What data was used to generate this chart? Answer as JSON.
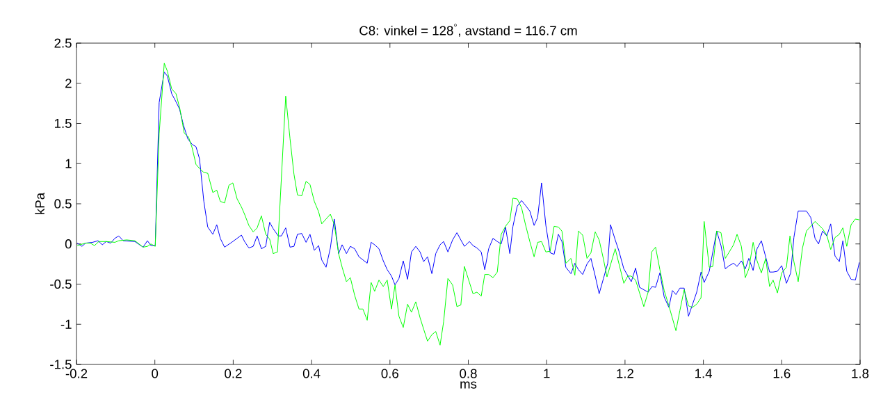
{
  "chart_data": {
    "type": "line",
    "title": "C8: vinkel = 128$^{°}$, avstand = 116.7 cm",
    "xlabel": "ms",
    "ylabel": "kPa",
    "xlim": [
      -0.2,
      1.8
    ],
    "ylim": [
      -1.5,
      2.5
    ],
    "xticks": [
      -0.2,
      0,
      0.2,
      0.4,
      0.6,
      0.8,
      1,
      1.2,
      1.4,
      1.6,
      1.8
    ],
    "yticks": [
      -1.5,
      -1,
      -0.5,
      0,
      0.5,
      1,
      1.5,
      2,
      2.5
    ],
    "grid": false,
    "line_style": "solid",
    "series": [
      {
        "color": "#0000ff",
        "x": [
          -0.198,
          -0.186,
          -0.177,
          -0.159,
          -0.145,
          -0.134,
          -0.124,
          -0.113,
          -0.102,
          -0.092,
          -0.081,
          -0.051,
          -0.03,
          -0.019,
          -0.01,
          0.001,
          0.011,
          0.024,
          0.032,
          0.043,
          0.054,
          0.063,
          0.073,
          0.084,
          0.095,
          0.105,
          0.114,
          0.125,
          0.135,
          0.148,
          0.158,
          0.167,
          0.178,
          0.199,
          0.221,
          0.229,
          0.24,
          0.251,
          0.261,
          0.272,
          0.283,
          0.293,
          0.302,
          0.315,
          0.323,
          0.334,
          0.345,
          0.355,
          0.364,
          0.375,
          0.386,
          0.396,
          0.407,
          0.418,
          0.426,
          0.437,
          0.448,
          0.458,
          0.469,
          0.478,
          0.489,
          0.499,
          0.51,
          0.521,
          0.542,
          0.552,
          0.561,
          0.572,
          0.583,
          0.593,
          0.604,
          0.613,
          0.623,
          0.634,
          0.645,
          0.655,
          0.666,
          0.677,
          0.686,
          0.696,
          0.707,
          0.717,
          0.728,
          0.737,
          0.748,
          0.76,
          0.771,
          0.781,
          0.79,
          0.803,
          0.812,
          0.822,
          0.833,
          0.842,
          0.852,
          0.863,
          0.874,
          0.884,
          0.895,
          0.906,
          0.914,
          0.925,
          0.936,
          0.946,
          0.957,
          0.968,
          0.977,
          0.987,
          0.998,
          1.009,
          1.019,
          1.03,
          1.039,
          1.049,
          1.062,
          1.072,
          1.081,
          1.092,
          1.103,
          1.113,
          1.124,
          1.134,
          1.145,
          1.156,
          1.163,
          1.175,
          1.184,
          1.197,
          1.216,
          1.227,
          1.237,
          1.259,
          1.269,
          1.278,
          1.289,
          1.3,
          1.312,
          1.321,
          1.33,
          1.34,
          1.351,
          1.362,
          1.383,
          1.394,
          1.402,
          1.415,
          1.434,
          1.445,
          1.456,
          1.466,
          1.477,
          1.486,
          1.497,
          1.507,
          1.516,
          1.527,
          1.537,
          1.548,
          1.559,
          1.569,
          1.578,
          1.589,
          1.6,
          1.612,
          1.623,
          1.631,
          1.642,
          1.653,
          1.663,
          1.674,
          1.685,
          1.694,
          1.704,
          1.715,
          1.725,
          1.736,
          1.747,
          1.756,
          1.766,
          1.777,
          1.788,
          1.798
        ],
        "values": [
          0.01,
          -0.03,
          0.01,
          0.02,
          0.04,
          -0.01,
          0.03,
          0.01,
          0.07,
          0.1,
          0.04,
          0.03,
          -0.04,
          0.04,
          -0.02,
          -0.02,
          1.76,
          2.14,
          2.09,
          1.87,
          1.77,
          1.68,
          1.48,
          1.31,
          1.24,
          1.21,
          1.06,
          0.53,
          0.21,
          0.12,
          0.24,
          0.07,
          -0.04,
          0.03,
          0.11,
          0.03,
          -0.05,
          -0.03,
          0.1,
          -0.06,
          -0.03,
          0.27,
          0.19,
          0.1,
          0.1,
          0.2,
          -0.04,
          -0.03,
          0.12,
          0.13,
          0.02,
          0.12,
          -0.08,
          -0.02,
          -0.2,
          -0.29,
          -0.05,
          0.31,
          -0.12,
          -0.01,
          -0.12,
          -0.03,
          -0.06,
          -0.16,
          -0.24,
          0.02,
          -0.01,
          -0.06,
          -0.21,
          -0.32,
          -0.4,
          -0.51,
          -0.43,
          -0.21,
          -0.44,
          -0.1,
          -0.03,
          -0.1,
          -0.22,
          -0.16,
          -0.37,
          -0.12,
          -0.01,
          0.03,
          -0.1,
          0.05,
          0.14,
          0.05,
          -0.03,
          0.03,
          -0.02,
          -0.05,
          -0.1,
          -0.32,
          -0.06,
          0.07,
          0.03,
          0.0,
          0.21,
          -0.12,
          0.22,
          0.47,
          0.54,
          0.48,
          0.41,
          0.23,
          0.33,
          0.76,
          0.23,
          -0.11,
          -0.13,
          0.12,
          0.03,
          -0.29,
          -0.37,
          -0.24,
          -0.32,
          -0.38,
          -0.25,
          -0.18,
          -0.4,
          -0.62,
          -0.43,
          -0.24,
          0.24,
          0.05,
          -0.08,
          -0.31,
          -0.47,
          -0.3,
          -0.54,
          -0.6,
          -0.53,
          -0.54,
          -0.36,
          -0.66,
          -0.79,
          -0.58,
          -0.63,
          -0.55,
          -0.55,
          -0.9,
          -0.6,
          -0.35,
          -0.48,
          -0.34,
          0.16,
          -0.02,
          -0.31,
          -0.27,
          -0.24,
          -0.28,
          -0.21,
          -0.31,
          -0.18,
          -0.33,
          -0.06,
          0.04,
          -0.16,
          -0.35,
          -0.35,
          -0.34,
          -0.27,
          -0.49,
          -0.36,
          0.08,
          0.41,
          0.41,
          0.41,
          0.33,
          0.07,
          0.0,
          0.16,
          0.1,
          0.25,
          -0.15,
          -0.22,
          0.04,
          -0.34,
          -0.44,
          -0.45,
          -0.23
        ]
      },
      {
        "color": "#00ff00",
        "x": [
          -0.198,
          -0.177,
          -0.165,
          -0.154,
          -0.143,
          -0.124,
          -0.102,
          -0.092,
          -0.072,
          -0.051,
          -0.03,
          -0.019,
          -0.01,
          0.001,
          0.011,
          0.024,
          0.032,
          0.043,
          0.054,
          0.064,
          0.075,
          0.086,
          0.095,
          0.105,
          0.114,
          0.125,
          0.135,
          0.148,
          0.158,
          0.167,
          0.178,
          0.189,
          0.199,
          0.21,
          0.221,
          0.229,
          0.24,
          0.251,
          0.261,
          0.272,
          0.283,
          0.293,
          0.302,
          0.313,
          0.334,
          0.345,
          0.355,
          0.364,
          0.375,
          0.386,
          0.396,
          0.407,
          0.418,
          0.426,
          0.448,
          0.458,
          0.469,
          0.478,
          0.489,
          0.499,
          0.51,
          0.521,
          0.531,
          0.542,
          0.552,
          0.561,
          0.572,
          0.583,
          0.593,
          0.604,
          0.613,
          0.623,
          0.634,
          0.645,
          0.655,
          0.666,
          0.677,
          0.686,
          0.696,
          0.707,
          0.717,
          0.728,
          0.737,
          0.748,
          0.76,
          0.771,
          0.781,
          0.79,
          0.803,
          0.812,
          0.822,
          0.833,
          0.842,
          0.852,
          0.863,
          0.874,
          0.884,
          0.895,
          0.906,
          0.914,
          0.925,
          0.936,
          0.946,
          0.957,
          0.968,
          0.977,
          0.987,
          0.998,
          1.009,
          1.019,
          1.03,
          1.039,
          1.049,
          1.062,
          1.072,
          1.081,
          1.092,
          1.103,
          1.113,
          1.124,
          1.134,
          1.145,
          1.154,
          1.175,
          1.197,
          1.207,
          1.216,
          1.227,
          1.248,
          1.259,
          1.268,
          1.278,
          1.289,
          1.3,
          1.312,
          1.33,
          1.34,
          1.351,
          1.362,
          1.372,
          1.383,
          1.394,
          1.402,
          1.415,
          1.424,
          1.434,
          1.445,
          1.456,
          1.466,
          1.477,
          1.486,
          1.497,
          1.507,
          1.516,
          1.527,
          1.537,
          1.548,
          1.559,
          1.569,
          1.578,
          1.589,
          1.6,
          1.612,
          1.621,
          1.631,
          1.642,
          1.653,
          1.663,
          1.685,
          1.704,
          1.715,
          1.725,
          1.736,
          1.747,
          1.756,
          1.766,
          1.777,
          1.788,
          1.798
        ],
        "values": [
          -0.02,
          0.01,
          0.01,
          -0.02,
          0.03,
          0.03,
          0.02,
          0.04,
          0.05,
          0.04,
          -0.04,
          -0.03,
          0.0,
          -0.03,
          1.37,
          2.25,
          2.15,
          1.93,
          1.87,
          1.68,
          1.38,
          1.33,
          1.2,
          0.99,
          0.94,
          0.89,
          0.88,
          0.64,
          0.67,
          0.53,
          0.51,
          0.73,
          0.76,
          0.56,
          0.46,
          0.37,
          0.23,
          0.15,
          0.2,
          0.35,
          0.12,
          0.06,
          -0.12,
          -0.1,
          1.84,
          1.31,
          0.87,
          0.61,
          0.6,
          0.78,
          0.74,
          0.53,
          0.4,
          0.25,
          0.37,
          0.24,
          -0.12,
          -0.29,
          -0.47,
          -0.42,
          -0.64,
          -0.81,
          -0.81,
          -0.95,
          -0.48,
          -0.59,
          -0.45,
          -0.53,
          -0.45,
          -0.81,
          -0.51,
          -0.9,
          -1.04,
          -0.75,
          -0.85,
          -0.72,
          -0.92,
          -1.06,
          -1.21,
          -1.13,
          -1.09,
          -1.26,
          -0.97,
          -0.43,
          -0.51,
          -0.78,
          -0.76,
          -0.28,
          -0.48,
          -0.62,
          -0.6,
          -0.65,
          -0.38,
          -0.38,
          -0.42,
          -0.35,
          0.12,
          0.22,
          0.29,
          0.57,
          0.56,
          0.45,
          0.24,
          0.03,
          -0.16,
          0.02,
          0.03,
          -0.1,
          -0.09,
          0.22,
          0.21,
          0.16,
          -0.24,
          -0.18,
          -0.39,
          0.16,
          0.11,
          -0.18,
          -0.11,
          0.15,
          0.05,
          -0.19,
          -0.41,
          -0.06,
          -0.49,
          -0.4,
          -0.4,
          -0.45,
          -0.78,
          -0.6,
          -0.1,
          -0.04,
          -0.32,
          -0.58,
          -0.77,
          -1.08,
          -0.83,
          -0.57,
          -0.77,
          -0.79,
          -0.75,
          -0.67,
          0.28,
          -0.29,
          -0.28,
          0.16,
          0.14,
          -0.18,
          -0.1,
          -0.01,
          0.12,
          -0.03,
          -0.42,
          -0.31,
          0.02,
          -0.21,
          -0.36,
          -0.18,
          -0.53,
          -0.45,
          -0.61,
          -0.36,
          -0.29,
          0.1,
          -0.22,
          -0.47,
          -0.05,
          0.16,
          0.28,
          0.19,
          0.11,
          -0.07,
          0.08,
          0.12,
          0.2,
          -0.03,
          0.24,
          0.31,
          0.3
        ]
      }
    ]
  }
}
